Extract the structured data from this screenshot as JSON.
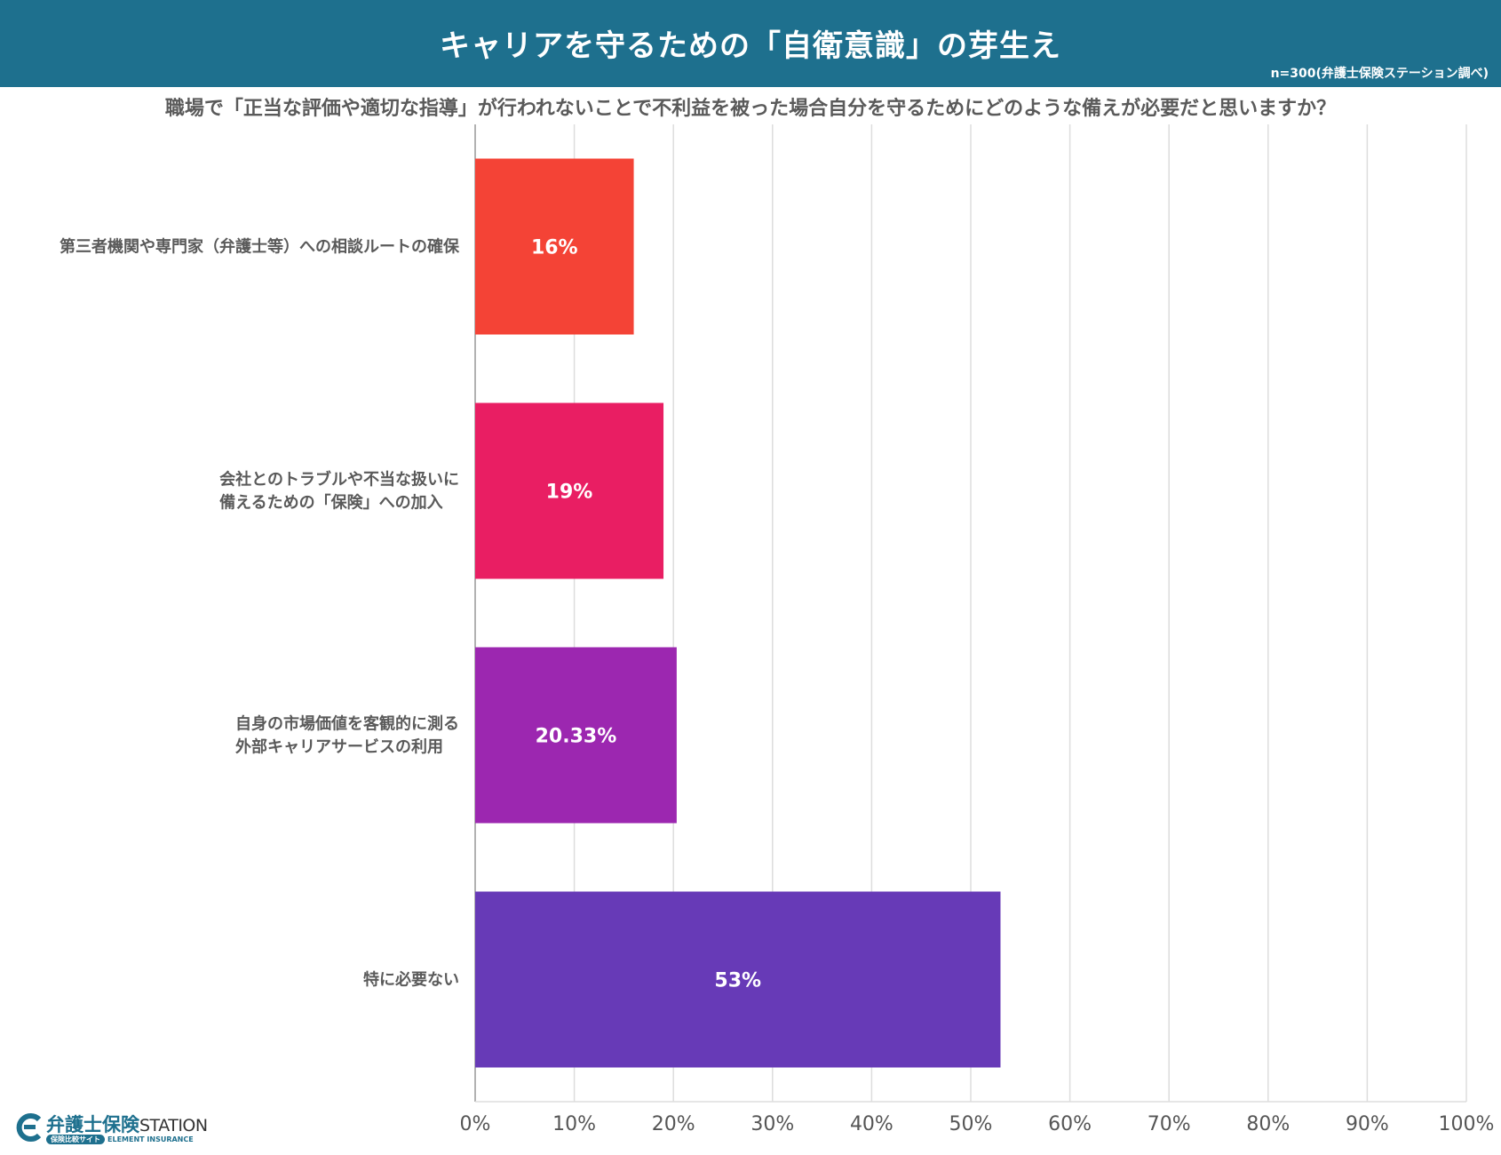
{
  "header": {
    "title": "キャリアを守るための「自衛意識」の芽生え",
    "sample": "n=300(弁護士保険ステーション調べ)"
  },
  "question": "職場で「正当な評価や適切な指導」が行われないことで不利益を被った場合自分を守るためにどのような備えが必要だと思いますか？",
  "colors": {
    "header_bg": "#1e708e",
    "grid": "#dddddd",
    "axis": "#999999"
  },
  "chart_data": {
    "type": "bar",
    "orientation": "horizontal",
    "categories": [
      [
        "第三者機関や専門家（弁護士等）への相談ルートの確保"
      ],
      [
        "会社とのトラブルや不当な扱いに",
        "備えるための「保険」への加入"
      ],
      [
        "自身の市場価値を客観的に測る",
        "外部キャリアサービスの利用"
      ],
      [
        "特に必要ない"
      ]
    ],
    "values": [
      16,
      19,
      20.33,
      53
    ],
    "value_labels": [
      "16%",
      "19%",
      "20.33%",
      "53%"
    ],
    "bar_colors": [
      "#f44336",
      "#e91e63",
      "#9c27b0",
      "#673ab7"
    ],
    "xlim": [
      0,
      100
    ],
    "xticks": [
      0,
      10,
      20,
      30,
      40,
      50,
      60,
      70,
      80,
      90,
      100
    ],
    "xtick_labels": [
      "0%",
      "10%",
      "20%",
      "30%",
      "40%",
      "50%",
      "60%",
      "70%",
      "80%",
      "90%",
      "100%"
    ],
    "grid": true
  },
  "logo": {
    "brand_jp": "弁護士保険",
    "brand_en": "STATION",
    "tag": "保険比較サイト",
    "company": "ELEMENT INSURANCE"
  }
}
